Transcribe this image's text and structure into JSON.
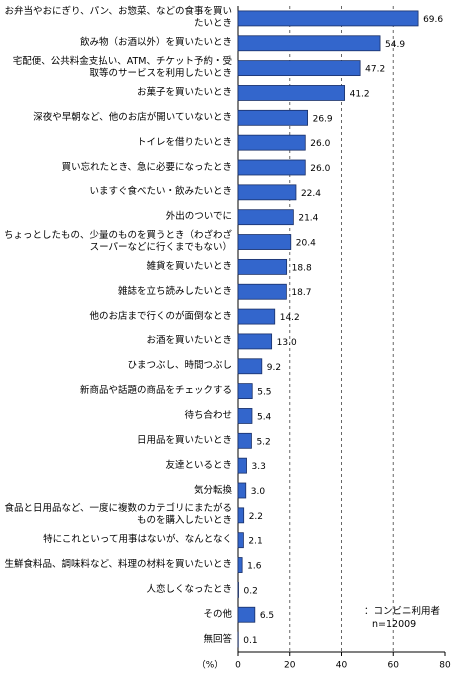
{
  "chart_data": {
    "type": "bar",
    "orientation": "horizontal",
    "categories": [
      "お弁当やおにぎり、パン、お惣菜、などの食事を買いたいとき",
      "飲み物（お酒以外）を買いたいとき",
      "宅配便、公共料金支払い、ATM、チケット予約・受取等のサービスを利用したいとき",
      "お菓子を買いたいとき",
      "深夜や早朝など、他のお店が開いていないとき",
      "トイレを借りたいとき",
      "買い忘れたとき、急に必要になったとき",
      "いますぐ食べたい・飲みたいとき",
      "外出のついでに",
      "ちょっとしたもの、少量のものを買うとき（わざわざスーパーなどに行くまでもない）",
      "雑貨を買いたいとき",
      "雑誌を立ち読みしたいとき",
      "他のお店まで行くのが面倒なとき",
      "お酒を買いたいとき",
      "ひまつぶし、時間つぶし",
      "新商品や話題の商品をチェックする",
      "待ち合わせ",
      "日用品を買いたいとき",
      "友達といるとき",
      "気分転換",
      "食品と日用品など、一度に複数のカテゴリにまたがるものを購入したいとき",
      "特にこれといって用事はないが、なんとなく",
      "生鮮食料品、調味料など、料理の材料を買いたいとき",
      "人恋しくなったとき",
      "その他",
      "無回答"
    ],
    "values": [
      69.6,
      54.9,
      47.2,
      41.2,
      26.9,
      26.0,
      26.0,
      22.4,
      21.4,
      20.4,
      18.8,
      18.7,
      14.2,
      13.0,
      9.2,
      5.5,
      5.4,
      5.2,
      3.3,
      3.0,
      2.2,
      2.1,
      1.6,
      0.2,
      6.5,
      0.1
    ],
    "value_labels": [
      "69.6",
      "54.9",
      "47.2",
      "41.2",
      "26.9",
      "26.0",
      "26.0",
      "22.4",
      "21.4",
      "20.4",
      "18.8",
      "18.7",
      "14.2",
      "13.0",
      "9.2",
      "5.5",
      "5.4",
      "5.2",
      "3.3",
      "3.0",
      "2.2",
      "2.1",
      "1.6",
      "0.2",
      "6.5",
      "0.1"
    ],
    "color": "#3366cc",
    "xlim": [
      0,
      80
    ],
    "xticks": [
      0,
      20,
      40,
      60,
      80
    ],
    "grid": true,
    "x_label": "（%）",
    "annotation": [
      "：コンビニ利用者",
      "n=12009"
    ]
  }
}
